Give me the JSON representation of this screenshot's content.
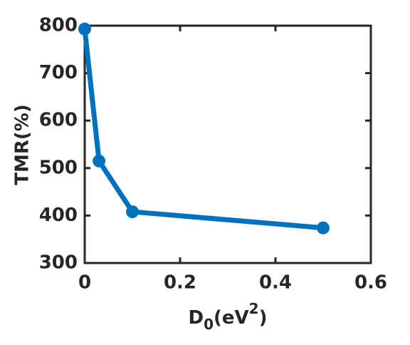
{
  "chart_data": {
    "type": "line",
    "ylabel": "TMR(%)",
    "xlabel_parts": [
      "D",
      "0",
      "(eV",
      "2",
      ")"
    ],
    "x": [
      0,
      0.03,
      0.1,
      0.5
    ],
    "series": [
      {
        "color": "#0072bd",
        "values": [
          793,
          515,
          408,
          374
        ]
      }
    ],
    "xlim": [
      0,
      0.6
    ],
    "xticks": [
      0,
      0.2,
      0.4,
      0.6
    ],
    "ylim": [
      300,
      800
    ],
    "yticks": [
      300,
      400,
      500,
      600,
      700,
      800
    ],
    "grid": false,
    "box": true
  }
}
